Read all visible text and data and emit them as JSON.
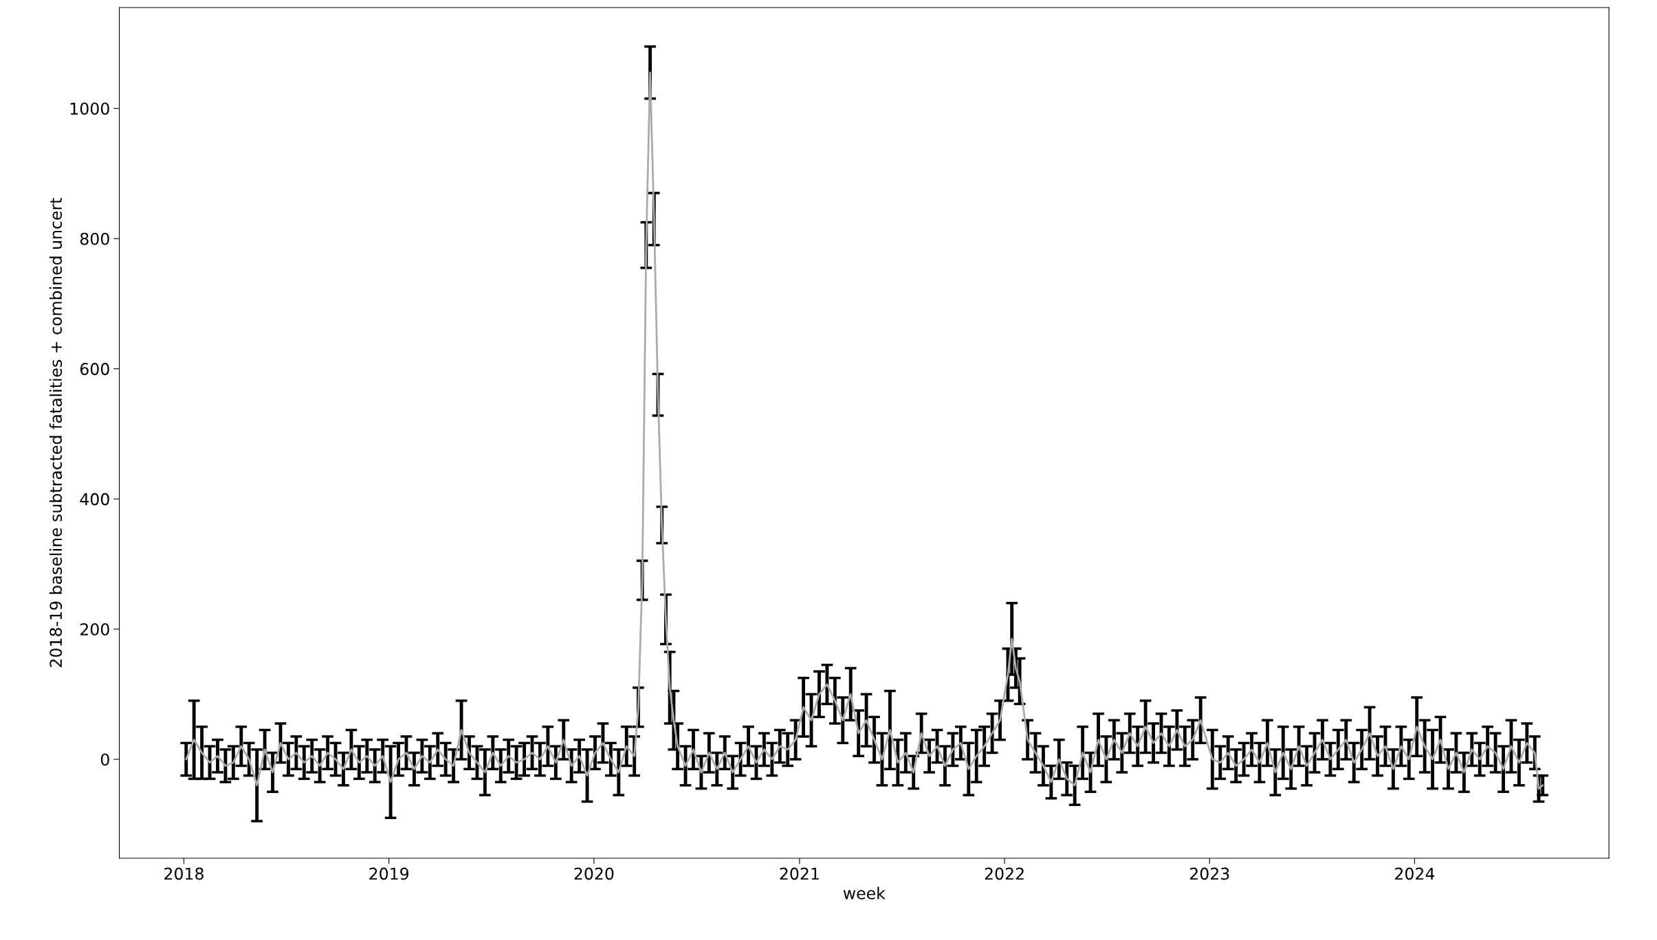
{
  "chart_data": {
    "type": "line",
    "xlabel": "week",
    "ylabel": "2018-19 baseline subtracted fatalities + combined uncert",
    "xlim": [
      "2017-09-08",
      "2024-12-12"
    ],
    "xticks": [
      "2018",
      "2019",
      "2020",
      "2021",
      "2022",
      "2023",
      "2024"
    ],
    "ylim": [
      -152,
      1155
    ],
    "yticks": [
      0,
      200,
      400,
      600,
      800,
      1000
    ],
    "grid": false,
    "legend": false,
    "marker": "none",
    "line_style": "solid",
    "series": [
      {
        "color": "#aaaaaa",
        "x": [
          "2018-01-05",
          "2018-01-19",
          "2018-02-02",
          "2018-02-16",
          "2018-03-02",
          "2018-03-16",
          "2018-03-30",
          "2018-04-13",
          "2018-04-27",
          "2018-05-11",
          "2018-05-25",
          "2018-06-08",
          "2018-06-22",
          "2018-07-06",
          "2018-07-20",
          "2018-08-03",
          "2018-08-17",
          "2018-08-31",
          "2018-09-14",
          "2018-09-28",
          "2018-10-12",
          "2018-10-26",
          "2018-11-09",
          "2018-11-23",
          "2018-12-07",
          "2018-12-21",
          "2019-01-04",
          "2019-01-18",
          "2019-02-01",
          "2019-02-15",
          "2019-03-01",
          "2019-03-15",
          "2019-03-29",
          "2019-04-12",
          "2019-04-26",
          "2019-05-10",
          "2019-05-24",
          "2019-06-07",
          "2019-06-21",
          "2019-07-05",
          "2019-07-19",
          "2019-08-02",
          "2019-08-16",
          "2019-08-30",
          "2019-09-13",
          "2019-09-27",
          "2019-10-11",
          "2019-10-25",
          "2019-11-08",
          "2019-11-22",
          "2019-12-06",
          "2019-12-20",
          "2020-01-03",
          "2020-01-17",
          "2020-01-31",
          "2020-02-14",
          "2020-02-28",
          "2020-03-13",
          "2020-03-20",
          "2020-03-27",
          "2020-04-03",
          "2020-04-10",
          "2020-04-17",
          "2020-04-24",
          "2020-05-01",
          "2020-05-08",
          "2020-05-15",
          "2020-05-22",
          "2020-05-29",
          "2020-06-12",
          "2020-06-26",
          "2020-07-10",
          "2020-07-24",
          "2020-08-07",
          "2020-08-21",
          "2020-09-04",
          "2020-09-18",
          "2020-10-02",
          "2020-10-16",
          "2020-10-30",
          "2020-11-13",
          "2020-11-27",
          "2020-12-11",
          "2020-12-25",
          "2021-01-08",
          "2021-01-22",
          "2021-02-05",
          "2021-02-19",
          "2021-03-05",
          "2021-03-19",
          "2021-04-02",
          "2021-04-16",
          "2021-04-30",
          "2021-05-14",
          "2021-05-28",
          "2021-06-11",
          "2021-06-25",
          "2021-07-09",
          "2021-07-23",
          "2021-08-06",
          "2021-08-20",
          "2021-09-03",
          "2021-09-17",
          "2021-10-01",
          "2021-10-15",
          "2021-10-29",
          "2021-11-12",
          "2021-11-26",
          "2021-12-10",
          "2021-12-24",
          "2022-01-07",
          "2022-01-14",
          "2022-01-21",
          "2022-01-28",
          "2022-02-11",
          "2022-02-25",
          "2022-03-11",
          "2022-03-25",
          "2022-04-08",
          "2022-04-22",
          "2022-05-06",
          "2022-05-20",
          "2022-06-03",
          "2022-06-17",
          "2022-07-01",
          "2022-07-15",
          "2022-07-29",
          "2022-08-12",
          "2022-08-26",
          "2022-09-09",
          "2022-09-23",
          "2022-10-07",
          "2022-10-21",
          "2022-11-04",
          "2022-11-18",
          "2022-12-02",
          "2022-12-16",
          "2023-01-06",
          "2023-01-20",
          "2023-02-03",
          "2023-02-17",
          "2023-03-03",
          "2023-03-17",
          "2023-03-31",
          "2023-04-14",
          "2023-04-28",
          "2023-05-12",
          "2023-05-26",
          "2023-06-09",
          "2023-06-23",
          "2023-07-07",
          "2023-07-21",
          "2023-08-04",
          "2023-08-18",
          "2023-09-01",
          "2023-09-15",
          "2023-09-29",
          "2023-10-13",
          "2023-10-27",
          "2023-11-10",
          "2023-11-24",
          "2023-12-08",
          "2023-12-22",
          "2024-01-05",
          "2024-01-19",
          "2024-02-02",
          "2024-02-16",
          "2024-03-01",
          "2024-03-15",
          "2024-03-29",
          "2024-04-12",
          "2024-04-26",
          "2024-05-10",
          "2024-05-24",
          "2024-06-07",
          "2024-06-21",
          "2024-07-05",
          "2024-07-19",
          "2024-08-02",
          "2024-08-09",
          "2024-08-16"
        ],
        "values": [
          0,
          30,
          10,
          -5,
          5,
          -10,
          -5,
          20,
          0,
          -40,
          15,
          -20,
          25,
          0,
          10,
          -5,
          5,
          -10,
          10,
          0,
          -15,
          15,
          -5,
          5,
          -10,
          5,
          -35,
          0,
          10,
          -15,
          5,
          -5,
          15,
          0,
          -10,
          45,
          10,
          -5,
          -20,
          10,
          -10,
          5,
          -5,
          0,
          10,
          0,
          20,
          -5,
          30,
          -10,
          5,
          -25,
          10,
          25,
          0,
          -20,
          20,
          5,
          80,
          275,
          790,
          1055,
          830,
          560,
          360,
          215,
          110,
          60,
          20,
          -10,
          15,
          -20,
          10,
          -15,
          10,
          -20,
          0,
          20,
          -5,
          15,
          0,
          20,
          15,
          30,
          80,
          60,
          100,
          115,
          90,
          60,
          100,
          40,
          60,
          30,
          0,
          45,
          -5,
          10,
          -20,
          40,
          5,
          20,
          -10,
          15,
          25,
          -15,
          5,
          20,
          40,
          60,
          130,
          185,
          140,
          120,
          30,
          10,
          -10,
          -35,
          0,
          -30,
          -40,
          10,
          -20,
          30,
          0,
          30,
          10,
          40,
          20,
          50,
          25,
          40,
          20,
          45,
          20,
          30,
          60,
          0,
          -5,
          10,
          -10,
          0,
          15,
          -5,
          25,
          -20,
          10,
          -15,
          20,
          -10,
          10,
          30,
          0,
          15,
          30,
          -5,
          15,
          40,
          5,
          20,
          -15,
          20,
          0,
          50,
          20,
          0,
          30,
          -15,
          10,
          -20,
          15,
          0,
          20,
          10,
          -15,
          20,
          -5,
          25,
          10,
          -45,
          -40
        ],
        "errors": [
          25,
          60,
          40,
          25,
          25,
          25,
          25,
          30,
          25,
          55,
          30,
          30,
          30,
          25,
          25,
          25,
          25,
          25,
          25,
          25,
          25,
          30,
          25,
          25,
          25,
          25,
          55,
          25,
          25,
          25,
          25,
          25,
          25,
          25,
          25,
          45,
          25,
          25,
          35,
          25,
          25,
          25,
          25,
          25,
          25,
          25,
          30,
          25,
          30,
          25,
          25,
          40,
          25,
          30,
          25,
          35,
          30,
          30,
          30,
          30,
          35,
          40,
          40,
          32,
          28,
          38,
          55,
          45,
          35,
          30,
          30,
          25,
          30,
          25,
          25,
          25,
          25,
          30,
          25,
          25,
          25,
          25,
          25,
          30,
          45,
          40,
          35,
          30,
          35,
          35,
          40,
          35,
          40,
          35,
          40,
          60,
          35,
          30,
          25,
          30,
          25,
          25,
          30,
          25,
          25,
          40,
          40,
          30,
          30,
          30,
          40,
          55,
          30,
          35,
          30,
          30,
          30,
          25,
          30,
          25,
          30,
          40,
          30,
          40,
          35,
          30,
          30,
          30,
          30,
          40,
          30,
          30,
          30,
          30,
          30,
          30,
          35,
          45,
          25,
          25,
          25,
          25,
          25,
          30,
          35,
          35,
          40,
          30,
          30,
          30,
          30,
          30,
          25,
          30,
          30,
          30,
          30,
          40,
          30,
          30,
          30,
          30,
          30,
          45,
          40,
          45,
          35,
          30,
          30,
          30,
          25,
          25,
          30,
          30,
          35,
          40,
          35,
          30,
          25,
          20,
          15
        ]
      }
    ]
  }
}
